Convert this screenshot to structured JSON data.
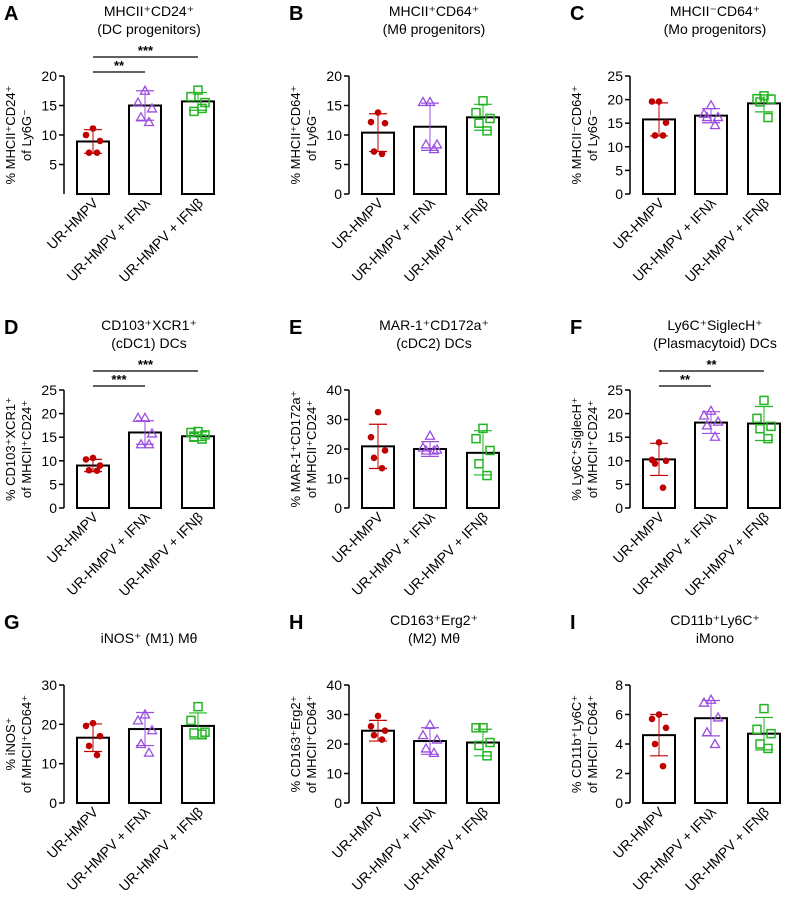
{
  "colors": {
    "group1": "#c00000",
    "group2": "#9b4de0",
    "group3": "#22b522"
  },
  "categories": [
    "UR-HMPV",
    "UR-HMPV + IFNλ",
    "UR-HMPV + IFNβ"
  ],
  "chart_data": [
    {
      "type": "bar",
      "letter": "A",
      "title": [
        "MHCII⁺CD24⁺",
        "(DC progenitors)"
      ],
      "ylabel": [
        "% MHCII⁺CD24⁺",
        "of Ly6G⁻"
      ],
      "ylim": [
        0,
        20
      ],
      "ticks": [
        5,
        10,
        15,
        20
      ],
      "means": [
        8.9,
        15,
        15.7
      ],
      "sd": [
        2,
        2.5,
        1.5
      ],
      "points": [
        [
          11.1,
          10,
          9,
          7,
          7
        ],
        [
          17.5,
          15.5,
          14.5,
          13,
          12.2
        ],
        [
          17.6,
          16.5,
          15.5,
          14,
          14.5
        ]
      ],
      "significance": [
        {
          "from": 0,
          "to": 1,
          "label": "**"
        },
        {
          "from": 0,
          "to": 2,
          "label": "***"
        }
      ]
    },
    {
      "type": "bar",
      "letter": "B",
      "title": [
        "MHCII⁺CD64⁺",
        "(Mθ progenitors)"
      ],
      "ylabel": [
        "% MHCII⁺CD64⁺",
        "of Ly6G⁻"
      ],
      "ylim": [
        0,
        20
      ],
      "ticks": [
        0,
        5,
        10,
        15,
        20
      ],
      "means": [
        10.4,
        11.4,
        13
      ],
      "sd": [
        3.2,
        4,
        2.2
      ],
      "points": [
        [
          13.8,
          12.2,
          12,
          7.2,
          6.8
        ],
        [
          15.6,
          15.6,
          8.4,
          8.4,
          7.6
        ],
        [
          15.8,
          13.8,
          12.8,
          12,
          10.7
        ]
      ],
      "significance": []
    },
    {
      "type": "bar",
      "letter": "C",
      "title": [
        "MHCII⁻CD64⁺",
        "(Mo progenitors)"
      ],
      "ylabel": [
        "% MHCII⁻CD64⁺",
        "of Ly6G⁻"
      ],
      "ylim": [
        0,
        25
      ],
      "ticks": [
        0,
        5,
        10,
        15,
        20,
        25
      ],
      "means": [
        15.8,
        16.6,
        19.2
      ],
      "sd": [
        3.5,
        1.5,
        1.8
      ],
      "points": [
        [
          19.6,
          19.6,
          15.1,
          12.4,
          12.4
        ],
        [
          18.8,
          17,
          16.3,
          16.3,
          14.6
        ],
        [
          20.8,
          20.2,
          20.1,
          19.5,
          16.2
        ]
      ],
      "significance": []
    },
    {
      "type": "bar",
      "letter": "D",
      "title": [
        "CD103⁺XCR1⁺",
        "(cDC1) DCs"
      ],
      "ylabel": [
        "% CD103⁺XCR1⁺",
        "of MHCII⁺CD24⁺"
      ],
      "ylim": [
        0,
        25
      ],
      "ticks": [
        0,
        5,
        10,
        15,
        20,
        25
      ],
      "means": [
        9,
        16,
        15.2
      ],
      "sd": [
        1.3,
        2.5,
        0.9
      ],
      "points": [
        [
          10.6,
          10.3,
          9,
          8,
          7.9
        ],
        [
          19.1,
          19.1,
          15.8,
          13.5,
          13.5
        ],
        [
          16.2,
          16,
          15.5,
          15,
          14.6
        ]
      ],
      "significance": [
        {
          "from": 0,
          "to": 1,
          "label": "***"
        },
        {
          "from": 0,
          "to": 2,
          "label": "***"
        }
      ]
    },
    {
      "type": "bar",
      "letter": "E",
      "title": [
        "MAR-1⁺CD172a⁺",
        "(cDC2) DCs"
      ],
      "ylabel": [
        "% MAR-1⁺CD172a⁺",
        "of MHCII⁺CD24⁺"
      ],
      "ylim": [
        0,
        40
      ],
      "ticks": [
        0,
        10,
        20,
        30,
        40
      ],
      "means": [
        20.9,
        20,
        18.7
      ],
      "sd": [
        7.5,
        2.5,
        7.5
      ],
      "points": [
        [
          32.5,
          24,
          19.5,
          17,
          13.5
        ],
        [
          24.5,
          20.5,
          19.8,
          19.5,
          19.5
        ],
        [
          27,
          23.5,
          19.5,
          15,
          11
        ]
      ],
      "significance": []
    },
    {
      "type": "bar",
      "letter": "F",
      "title": [
        "Ly6C⁺SiglecH⁺",
        "(Plasmacytoid) DCs"
      ],
      "ylabel": [
        "% Ly6C⁺SiglecH⁺",
        "of MHCII⁺CD24⁺"
      ],
      "ylim": [
        0,
        25
      ],
      "ticks": [
        0,
        5,
        10,
        15,
        20,
        25
      ],
      "means": [
        10.3,
        18.1,
        17.9
      ],
      "sd": [
        3.4,
        2.3,
        3.6
      ],
      "points": [
        [
          13.9,
          10.2,
          10,
          9.4,
          4.3
        ],
        [
          20.6,
          19.6,
          18.3,
          17.5,
          15.1
        ],
        [
          22.8,
          19,
          17.3,
          16.8,
          14.7
        ]
      ],
      "significance": [
        {
          "from": 0,
          "to": 1,
          "label": "**"
        },
        {
          "from": 0,
          "to": 2,
          "label": "**"
        }
      ]
    },
    {
      "type": "bar",
      "letter": "G",
      "title": [
        "",
        "iNOS⁺ (M1) Mθ"
      ],
      "ylabel": [
        "% iNOS⁺",
        "of MHCII⁺CD64⁺"
      ],
      "ylim": [
        0,
        30
      ],
      "ticks": [
        0,
        10,
        20,
        30
      ],
      "means": [
        16.6,
        18.8,
        19.6
      ],
      "sd": [
        3.5,
        4.2,
        3.3
      ],
      "points": [
        [
          20.3,
          19.6,
          17,
          14.5,
          12.2
        ],
        [
          22.5,
          21,
          18.5,
          15,
          12.8
        ],
        [
          24.5,
          21,
          18,
          17.8,
          17.5
        ]
      ],
      "significance": []
    },
    {
      "type": "bar",
      "letter": "H",
      "title": [
        "CD163⁺Erg2⁺",
        "(M2) Mθ"
      ],
      "ylabel": [
        "% CD163⁺Erg2⁺",
        "of MHCII⁺CD64⁺"
      ],
      "ylim": [
        0,
        40
      ],
      "ticks": [
        0,
        10,
        20,
        30,
        40
      ],
      "means": [
        24.5,
        21,
        20.5
      ],
      "sd": [
        3.5,
        4.5,
        4.5
      ],
      "points": [
        [
          29.5,
          26,
          24.5,
          23,
          21.5
        ],
        [
          26.5,
          23,
          21.5,
          18.5,
          17
        ],
        [
          25.5,
          25.5,
          20.5,
          19.5,
          16
        ]
      ],
      "significance": []
    },
    {
      "type": "bar",
      "letter": "I",
      "title": [
        "CD11b⁺Ly6C⁺",
        "iMono"
      ],
      "ylabel": [
        "% CD11b⁺Ly6C⁺",
        "of MHCII⁻CD64⁺"
      ],
      "ylim": [
        0,
        8
      ],
      "ticks": [
        0,
        2,
        4,
        6,
        8
      ],
      "means": [
        4.6,
        5.75,
        4.7
      ],
      "sd": [
        1.4,
        1.2,
        1.1
      ],
      "points": [
        [
          6,
          5.7,
          5.1,
          4,
          2.5
        ],
        [
          7,
          6.8,
          5.8,
          4.8,
          4
        ],
        [
          6.4,
          5,
          4.7,
          4,
          3.7
        ]
      ],
      "significance": []
    }
  ]
}
